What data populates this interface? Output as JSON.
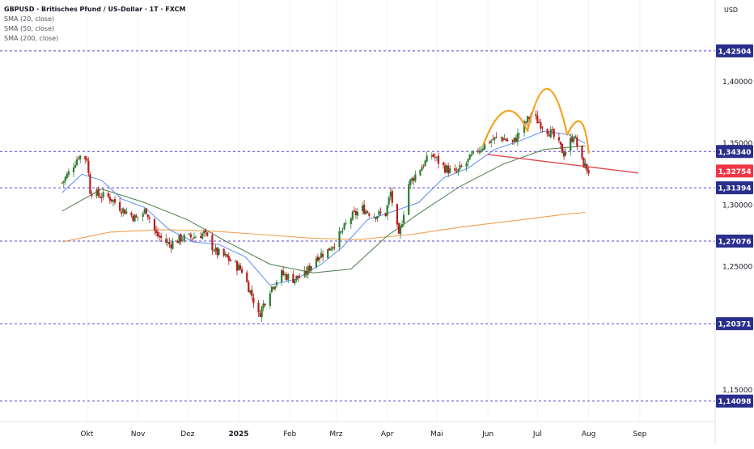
{
  "legend": {
    "title": "GBPUSD · Britisches Pfund / US-Dollar · 1T · FXCM",
    "sma20": "SMA (20, close)",
    "sma50": "SMA (50, close)",
    "sma200": "SMA (200, close)"
  },
  "currency": "USD",
  "colors": {
    "up": "#2e7d32",
    "down": "#b71c1c",
    "sma20": "#5b8def",
    "sma50": "#4a7c4e",
    "sma200": "#f0a050",
    "level": "#5c3fd6",
    "neckline": "#e0464b",
    "pattern": "#f4a21f"
  },
  "chart_data": {
    "type": "candlestick",
    "symbol": "GBPUSD",
    "timeframe": "1T",
    "x_tick_labels": [
      "Okt",
      "Nov",
      "Dez",
      "2025",
      "Feb",
      "Mrz",
      "Apr",
      "Mai",
      "Jun",
      "Jul",
      "Aug",
      "Sep"
    ],
    "y_tick_labels": [
      "1,40000",
      "1,35000",
      "1,30000",
      "1,25000",
      "1,15000"
    ],
    "ylim": [
      1.13,
      1.445
    ],
    "last_price": 1.32754,
    "price_label": "1,32754",
    "horizontal_levels": [
      {
        "value": 1.42504,
        "label": "1,42504"
      },
      {
        "value": 1.3434,
        "label": "1,34340"
      },
      {
        "value": 1.31394,
        "label": "1,31394"
      },
      {
        "value": 1.27076,
        "label": "1,27076"
      },
      {
        "value": 1.20371,
        "label": "1,20371"
      },
      {
        "value": 1.14098,
        "label": "1,14098"
      }
    ],
    "neckline": {
      "from": [
        "2025-06-01",
        1.341
      ],
      "to": [
        "2025-08-31",
        1.326
      ]
    },
    "pattern": "head-and-shoulders",
    "price_path": [
      [
        "2024-09-16",
        1.318
      ],
      [
        "2024-09-20",
        1.326
      ],
      [
        "2024-09-26",
        1.34
      ],
      [
        "2024-10-01",
        1.338
      ],
      [
        "2024-10-03",
        1.312
      ],
      [
        "2024-10-08",
        1.308
      ],
      [
        "2024-10-15",
        1.306
      ],
      [
        "2024-10-22",
        1.297
      ],
      [
        "2024-10-31",
        1.289
      ],
      [
        "2024-11-06",
        1.296
      ],
      [
        "2024-11-12",
        1.276
      ],
      [
        "2024-11-20",
        1.268
      ],
      [
        "2024-11-27",
        1.273
      ],
      [
        "2024-12-04",
        1.274
      ],
      [
        "2024-12-11",
        1.277
      ],
      [
        "2024-12-18",
        1.262
      ],
      [
        "2024-12-25",
        1.257
      ],
      [
        "2025-01-03",
        1.247
      ],
      [
        "2025-01-10",
        1.223
      ],
      [
        "2025-01-13",
        1.21
      ],
      [
        "2025-01-20",
        1.232
      ],
      [
        "2025-01-27",
        1.244
      ],
      [
        "2025-02-03",
        1.24
      ],
      [
        "2025-02-10",
        1.243
      ],
      [
        "2025-02-17",
        1.258
      ],
      [
        "2025-02-24",
        1.263
      ],
      [
        "2025-03-03",
        1.275
      ],
      [
        "2025-03-10",
        1.29
      ],
      [
        "2025-03-17",
        1.297
      ],
      [
        "2025-03-24",
        1.292
      ],
      [
        "2025-03-31",
        1.293
      ],
      [
        "2025-04-03",
        1.31
      ],
      [
        "2025-04-08",
        1.273
      ],
      [
        "2025-04-14",
        1.317
      ],
      [
        "2025-04-21",
        1.33
      ],
      [
        "2025-04-28",
        1.341
      ],
      [
        "2025-05-05",
        1.331
      ],
      [
        "2025-05-12",
        1.325
      ],
      [
        "2025-05-19",
        1.334
      ],
      [
        "2025-05-26",
        1.345
      ],
      [
        "2025-06-02",
        1.352
      ],
      [
        "2025-06-09",
        1.355
      ],
      [
        "2025-06-16",
        1.35
      ],
      [
        "2025-06-23",
        1.365
      ],
      [
        "2025-06-27",
        1.373
      ],
      [
        "2025-07-03",
        1.366
      ],
      [
        "2025-07-10",
        1.357
      ],
      [
        "2025-07-17",
        1.342
      ],
      [
        "2025-07-23",
        1.357
      ],
      [
        "2025-07-28",
        1.335
      ],
      [
        "2025-08-01",
        1.3275
      ]
    ],
    "sma20": [
      [
        "2024-09-16",
        1.31
      ],
      [
        "2024-09-28",
        1.325
      ],
      [
        "2024-10-10",
        1.32
      ],
      [
        "2024-10-22",
        1.305
      ],
      [
        "2024-11-05",
        1.298
      ],
      [
        "2024-11-20",
        1.28
      ],
      [
        "2024-12-05",
        1.27
      ],
      [
        "2024-12-20",
        1.268
      ],
      [
        "2025-01-05",
        1.258
      ],
      [
        "2025-01-20",
        1.235
      ],
      [
        "2025-02-05",
        1.24
      ],
      [
        "2025-02-20",
        1.252
      ],
      [
        "2025-03-05",
        1.266
      ],
      [
        "2025-03-20",
        1.288
      ],
      [
        "2025-04-05",
        1.295
      ],
      [
        "2025-04-20",
        1.302
      ],
      [
        "2025-05-05",
        1.322
      ],
      [
        "2025-05-20",
        1.33
      ],
      [
        "2025-06-05",
        1.345
      ],
      [
        "2025-06-20",
        1.352
      ],
      [
        "2025-07-05",
        1.36
      ],
      [
        "2025-07-20",
        1.357
      ],
      [
        "2025-07-30",
        1.35
      ]
    ],
    "sma50": [
      [
        "2024-09-16",
        1.295
      ],
      [
        "2024-10-10",
        1.313
      ],
      [
        "2024-11-05",
        1.302
      ],
      [
        "2024-12-01",
        1.288
      ],
      [
        "2024-12-25",
        1.27
      ],
      [
        "2025-01-20",
        1.252
      ],
      [
        "2025-02-15",
        1.245
      ],
      [
        "2025-03-10",
        1.248
      ],
      [
        "2025-04-01",
        1.275
      ],
      [
        "2025-04-20",
        1.293
      ],
      [
        "2025-05-15",
        1.315
      ],
      [
        "2025-06-10",
        1.333
      ],
      [
        "2025-07-05",
        1.345
      ],
      [
        "2025-07-30",
        1.348
      ]
    ],
    "sma200": [
      [
        "2024-09-16",
        1.27
      ],
      [
        "2024-10-15",
        1.278
      ],
      [
        "2024-11-15",
        1.28
      ],
      [
        "2024-12-15",
        1.279
      ],
      [
        "2025-01-15",
        1.276
      ],
      [
        "2025-02-15",
        1.273
      ],
      [
        "2025-03-15",
        1.272
      ],
      [
        "2025-04-15",
        1.276
      ],
      [
        "2025-05-15",
        1.282
      ],
      [
        "2025-06-15",
        1.287
      ],
      [
        "2025-07-15",
        1.292
      ],
      [
        "2025-07-30",
        1.294
      ]
    ]
  }
}
